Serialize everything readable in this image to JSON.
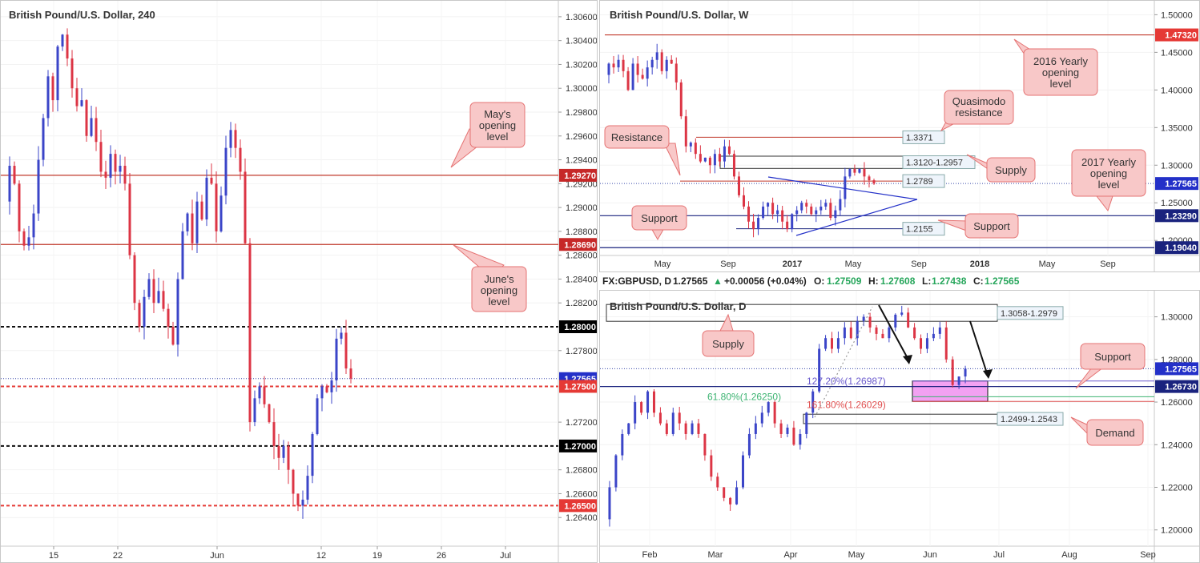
{
  "colors": {
    "bull": "#3b45c8",
    "bear": "#dc3545",
    "red_line": "#c0392b",
    "blue_line": "#1a237e",
    "callout_fill": "#f8c8c8",
    "callout_stroke": "#e57373",
    "zone_fill": "#ee82ee",
    "fib_blue": "#6a5acd",
    "fib_green": "#3cb371",
    "fib_red": "#e05050"
  },
  "panel_4h": {
    "title": "British Pound/U.S. Dollar, 240",
    "y_ticks": [
      "1.30600",
      "1.30400",
      "1.30200",
      "1.30000",
      "1.29800",
      "1.29600",
      "1.29400",
      "1.29200",
      "1.29000",
      "1.28800",
      "1.28600",
      "1.28400",
      "1.28200",
      "1.27800",
      "1.27200",
      "1.26800",
      "1.26600",
      "1.26400"
    ],
    "x_ticks": [
      "15",
      "22",
      "Jun",
      "12",
      "19",
      "26",
      "Jul"
    ],
    "levels": [
      {
        "label": "1.29270",
        "value": 1.2927,
        "style": "solid-red"
      },
      {
        "label": "1.28690",
        "value": 1.2869,
        "style": "solid-red"
      },
      {
        "label": "1.28000",
        "value": 1.28,
        "style": "dashed-black"
      },
      {
        "label": "1.27565",
        "value": 1.27565,
        "style": "price"
      },
      {
        "label": "1.27500",
        "value": 1.275,
        "style": "dashed-red"
      },
      {
        "label": "1.27000",
        "value": 1.27,
        "style": "dashed-black"
      },
      {
        "label": "1.26500",
        "value": 1.265,
        "style": "dashed-red"
      }
    ],
    "callouts": {
      "may": "May's opening level",
      "june": "June's opening level"
    }
  },
  "panel_weekly": {
    "title": "British Pound/U.S. Dollar, W",
    "y_ticks": [
      "1.50000",
      "1.45000",
      "1.40000",
      "1.35000",
      "1.30000",
      "1.25000",
      "1.20000"
    ],
    "x_ticks": [
      "May",
      "Sep",
      "2017",
      "May",
      "Sep",
      "2018",
      "May",
      "Sep"
    ],
    "axis_labels": {
      "l14732": "1.47320",
      "l12756": "1.27565",
      "l12329": "1.23290",
      "l11904": "1.19040"
    },
    "boxes": {
      "qm": "1.3371",
      "supply": "1.3120-1.2957",
      "r2789": "1.2789",
      "s2155": "1.2155"
    },
    "callouts": {
      "y2016": "2016 Yearly opening level",
      "quasimodo": "Quasimodo resistance",
      "resistance": "Resistance",
      "supply": "Supply",
      "y2017": "2017 Yearly opening level",
      "support_left": "Support",
      "support_right": "Support"
    }
  },
  "infobar": {
    "symbol": "FX:GBPUSD, D",
    "last": "1.27565",
    "change": "+0.00056 (+0.04%)",
    "o_label": "O:",
    "o": "1.27509",
    "h_label": "H:",
    "h": "1.27608",
    "l_label": "L:",
    "l": "1.27438",
    "c_label": "C:",
    "c": "1.27565"
  },
  "panel_daily": {
    "title": "British Pound/U.S. Dollar, D",
    "y_ticks": [
      "1.30000",
      "1.28000",
      "1.26000",
      "1.24000",
      "1.22000",
      "1.20000"
    ],
    "x_ticks": [
      "Feb",
      "Mar",
      "Apr",
      "May",
      "Jun",
      "Jul",
      "Aug",
      "Sep"
    ],
    "axis_labels": {
      "price": "1.27565",
      "support": "1.26730"
    },
    "boxes": {
      "supply": "1.3058-1.2979",
      "demand": "1.2499-1.2543"
    },
    "fibs": {
      "f127": "127.20%(1.26987)",
      "f618": "61.80%(1.26250)",
      "f161": "161.80%(1.26029)"
    },
    "callouts": {
      "supply": "Supply",
      "support": "Support",
      "demand": "Demand"
    }
  },
  "chart_data": [
    {
      "type": "candlestick",
      "title": "British Pound/U.S. Dollar, 240",
      "ylim": [
        1.262,
        1.307
      ],
      "x_ticks": [
        "15",
        "22",
        "Jun",
        "12",
        "19",
        "26",
        "Jul"
      ],
      "horizontal_levels": [
        1.2927,
        1.2869,
        1.28,
        1.275,
        1.27,
        1.265
      ],
      "last_price": 1.27565,
      "path": [
        1.2905,
        1.2935,
        1.292,
        1.288,
        1.2868,
        1.2875,
        1.2895,
        1.294,
        1.2975,
        1.301,
        1.299,
        1.3035,
        1.3045,
        1.3025,
        1.3,
        1.2985,
        1.299,
        1.296,
        1.2975,
        1.2955,
        1.293,
        1.2925,
        1.2945,
        1.293,
        1.2935,
        1.292,
        1.286,
        1.282,
        1.28,
        1.2825,
        1.284,
        1.282,
        1.283,
        1.2815,
        1.28,
        1.2785,
        1.284,
        1.288,
        1.2895,
        1.287,
        1.2905,
        1.289,
        1.2925,
        1.292,
        1.288,
        1.291,
        1.295,
        1.2965,
        1.295,
        1.293,
        1.287,
        1.272,
        1.274,
        1.275,
        1.2735,
        1.272,
        1.27,
        1.269,
        1.27,
        1.268,
        1.266,
        1.265,
        1.2655,
        1.2675,
        1.271,
        1.274,
        1.275,
        1.2745,
        1.2755,
        1.279,
        1.2795,
        1.2765,
        1.27565
      ]
    },
    {
      "type": "candlestick",
      "title": "British Pound/U.S. Dollar, W",
      "ylim": [
        1.18,
        1.51
      ],
      "x_ticks": [
        "May",
        "Sep",
        "2017",
        "May",
        "Sep",
        "2018",
        "May",
        "Sep"
      ],
      "horizontal_levels": [
        1.4732,
        1.3371,
        1.2789,
        1.2329,
        1.2155,
        1.1904
      ],
      "zones": [
        [
          1.2957,
          1.312
        ]
      ],
      "last_price": 1.27565,
      "path": [
        1.42,
        1.435,
        1.43,
        1.44,
        1.425,
        1.4,
        1.435,
        1.42,
        1.415,
        1.43,
        1.44,
        1.45,
        1.425,
        1.44,
        1.435,
        1.41,
        1.365,
        1.325,
        1.33,
        1.315,
        1.305,
        1.31,
        1.3,
        1.315,
        1.305,
        1.325,
        1.315,
        1.285,
        1.26,
        1.245,
        1.225,
        1.215,
        1.23,
        1.245,
        1.25,
        1.235,
        1.24,
        1.225,
        1.215,
        1.235,
        1.24,
        1.25,
        1.245,
        1.235,
        1.24,
        1.245,
        1.25,
        1.23,
        1.24,
        1.255,
        1.285,
        1.295,
        1.29,
        1.295,
        1.285,
        1.28,
        1.27565
      ]
    },
    {
      "type": "candlestick",
      "title": "British Pound/U.S. Dollar, D",
      "ylim": [
        1.195,
        1.31
      ],
      "x_ticks": [
        "Feb",
        "Mar",
        "Apr",
        "May",
        "Jun",
        "Jul",
        "Aug",
        "Sep"
      ],
      "horizontal_levels": [
        1.2673,
        1.26987,
        1.2625,
        1.26029
      ],
      "zones": [
        [
          1.2979,
          1.3058
        ],
        [
          1.2499,
          1.2543
        ],
        [
          1.2603,
          1.2699
        ]
      ],
      "last_price": 1.27565,
      "path": [
        1.205,
        1.22,
        1.235,
        1.245,
        1.25,
        1.26,
        1.255,
        1.265,
        1.255,
        1.25,
        1.245,
        1.255,
        1.25,
        1.245,
        1.25,
        1.245,
        1.235,
        1.225,
        1.22,
        1.215,
        1.212,
        1.22,
        1.235,
        1.245,
        1.25,
        1.255,
        1.26,
        1.25,
        1.245,
        1.248,
        1.24,
        1.245,
        1.255,
        1.265,
        1.285,
        1.29,
        1.285,
        1.29,
        1.295,
        1.29,
        1.298,
        1.3,
        1.295,
        1.292,
        1.29,
        1.295,
        1.301,
        1.302,
        1.295,
        1.29,
        1.285,
        1.29,
        1.292,
        1.295,
        1.28,
        1.268,
        1.272,
        1.27565
      ]
    }
  ]
}
